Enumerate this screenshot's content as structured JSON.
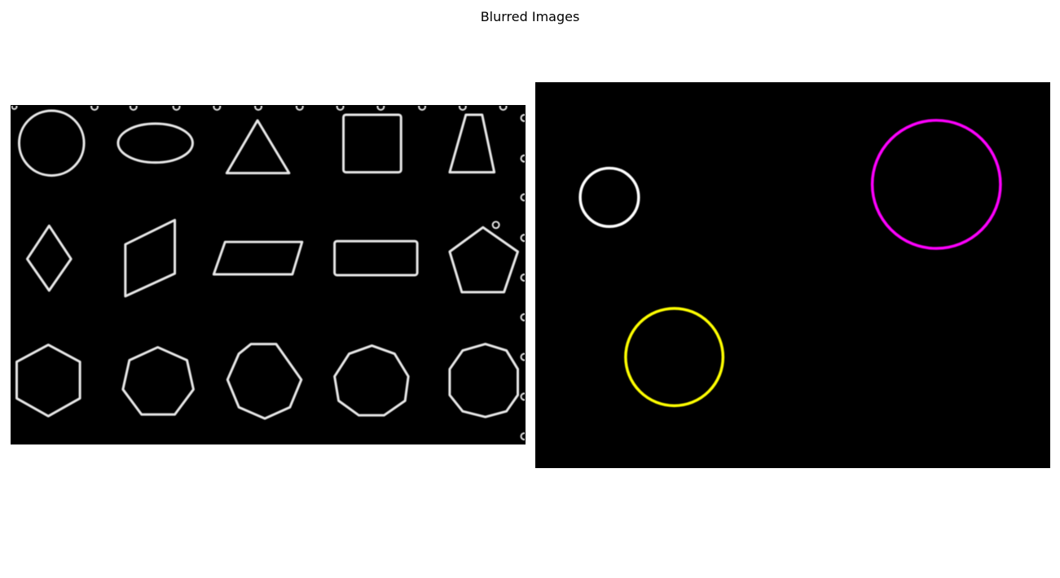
{
  "figure": {
    "title": "Blurred Images"
  },
  "panels": {
    "left": {
      "content": "shapes-outline-grid",
      "stroke_color": "#e6e6e6",
      "background": "#000000"
    },
    "right": {
      "content": "colored-circles",
      "background": "#000000",
      "circle_colors": {
        "white": "#ffffff",
        "magenta": "#ff00ff",
        "yellow": "#ffff00"
      }
    }
  }
}
